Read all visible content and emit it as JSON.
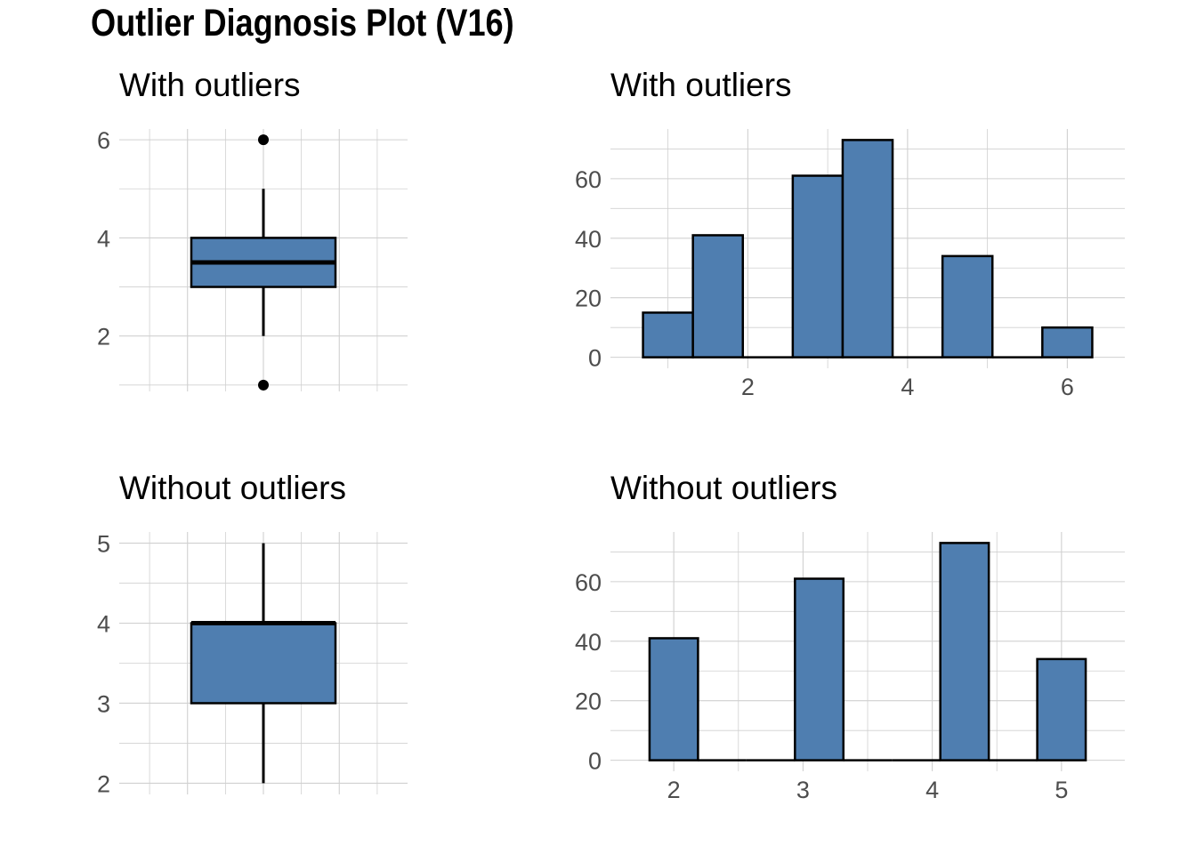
{
  "title": "Outlier Diagnosis Plot (V16)",
  "colors": {
    "fill": "#4f7eb0",
    "outline": "#000000",
    "grid": "#d0d0d0",
    "tick_text": "#4d4d4d"
  },
  "chart_data": [
    {
      "type": "box",
      "title": "With outliers",
      "ylim": [
        0.87,
        6.22
      ],
      "y_ticks": [
        2,
        4,
        6
      ],
      "stats": {
        "lower_whisker": 2,
        "q1": 3,
        "median": 3.5,
        "q3": 4,
        "upper_whisker": 5
      },
      "outliers": [
        1,
        6
      ]
    },
    {
      "type": "bar",
      "title": "With outliers",
      "xlim": [
        0.28,
        6.72
      ],
      "ylim": [
        -3.7,
        76.7
      ],
      "x_ticks": [
        2,
        4,
        6
      ],
      "y_ticks": [
        0,
        20,
        40,
        60
      ],
      "bin_width": 0.625,
      "bins": [
        {
          "x": 1.0,
          "count": 15
        },
        {
          "x": 1.625,
          "count": 41
        },
        {
          "x": 2.25,
          "count": 0
        },
        {
          "x": 2.875,
          "count": 61
        },
        {
          "x": 3.5,
          "count": 73
        },
        {
          "x": 4.125,
          "count": 0
        },
        {
          "x": 4.75,
          "count": 34
        },
        {
          "x": 5.375,
          "count": 0
        },
        {
          "x": 6.0,
          "count": 10
        }
      ]
    },
    {
      "type": "box",
      "title": "Without outliers",
      "ylim": [
        1.86,
        5.14
      ],
      "y_ticks": [
        2,
        3,
        4,
        5
      ],
      "stats": {
        "lower_whisker": 2,
        "q1": 3,
        "median": 4,
        "q3": 4,
        "upper_whisker": 5
      },
      "outliers": []
    },
    {
      "type": "bar",
      "title": "Without outliers",
      "xlim": [
        1.51,
        5.49
      ],
      "ylim": [
        -3.7,
        76.7
      ],
      "x_ticks": [
        2,
        3,
        4,
        5
      ],
      "y_ticks": [
        0,
        20,
        40,
        60
      ],
      "bin_width": 0.375,
      "bins": [
        {
          "x": 2.0,
          "count": 41
        },
        {
          "x": 2.375,
          "count": 0
        },
        {
          "x": 2.75,
          "count": 0
        },
        {
          "x": 3.125,
          "count": 61
        },
        {
          "x": 3.5,
          "count": 0
        },
        {
          "x": 3.875,
          "count": 0
        },
        {
          "x": 4.25,
          "count": 73
        },
        {
          "x": 4.625,
          "count": 0
        },
        {
          "x": 5.0,
          "count": 34
        }
      ]
    }
  ]
}
